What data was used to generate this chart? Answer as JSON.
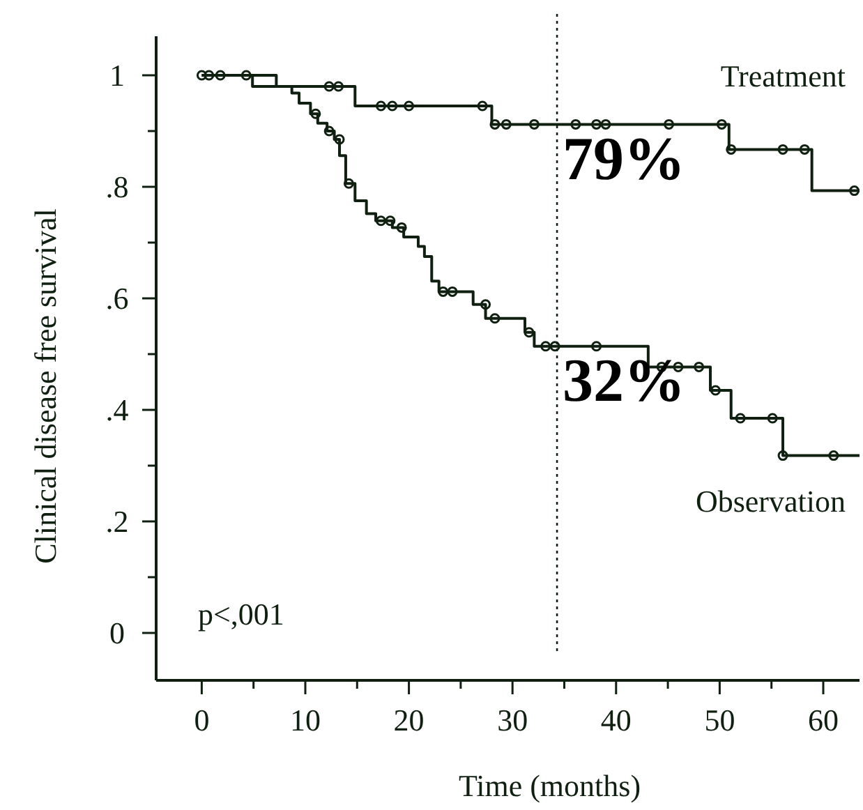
{
  "chart_data": {
    "type": "step",
    "xlabel": "Time (months)",
    "ylabel": "Clinical disease free survival",
    "xlim": [
      -4.4,
      63.5
    ],
    "ylim": [
      -0.085,
      1.07
    ],
    "xticks": [
      0,
      {
        "value": 5,
        "label": null
      },
      10,
      {
        "value": 15,
        "label": null
      },
      20,
      {
        "value": 25,
        "label": null
      },
      30,
      {
        "value": 35,
        "label": null
      },
      40,
      {
        "value": 45,
        "label": null
      },
      50,
      {
        "value": 55,
        "label": null
      },
      60
    ],
    "yticks": [
      0,
      {
        "value": 0.1,
        "label": null
      },
      {
        "value": 0.2,
        "label": ".2"
      },
      {
        "value": 0.3,
        "label": null
      },
      {
        "value": 0.4,
        "label": ".4"
      },
      {
        "value": 0.5,
        "label": null
      },
      {
        "value": 0.6,
        "label": ".6"
      },
      {
        "value": 0.7,
        "label": null
      },
      {
        "value": 0.8,
        "label": ".8"
      },
      {
        "value": 0.9,
        "label": null
      },
      1
    ],
    "grid": false,
    "marker": "none",
    "line_style": "solid",
    "series": [
      {
        "name": "Treatment",
        "color": "#102010",
        "x": [
          0,
          7.2,
          14.8,
          28,
          50.9,
          58.9,
          63.5
        ],
        "values": [
          1,
          0.98,
          0.945,
          0.912,
          0.867,
          0.793,
          0.793
        ]
      },
      {
        "name": "Observation",
        "color": "#102010",
        "x": [
          0,
          4.9,
          8.7,
          9.4,
          10.5,
          11.2,
          12.1,
          12.8,
          13.3,
          13.9,
          14.8,
          15.9,
          16.8,
          18.4,
          19.5,
          20.9,
          21.5,
          22.2,
          22.9,
          26.2,
          27.4,
          31.2,
          32.1,
          43.1,
          49.1,
          51.1,
          56.1,
          63.5
        ],
        "values": [
          1,
          0.98,
          0.968,
          0.95,
          0.931,
          0.914,
          0.9,
          0.885,
          0.856,
          0.806,
          0.775,
          0.752,
          0.739,
          0.727,
          0.71,
          0.693,
          0.675,
          0.631,
          0.612,
          0.589,
          0.564,
          0.539,
          0.514,
          0.477,
          0.435,
          0.385,
          0.318,
          0.318
        ]
      },
      {
        "type": "scatter",
        "color": "#102010",
        "marker": "circle",
        "x": [
          0,
          0.7,
          1.8,
          4.3,
          12.3,
          13.2,
          17.3,
          18.4,
          20,
          27.1,
          28.3,
          29.4,
          32.1,
          36.1,
          38.1,
          39,
          45.1,
          50.2,
          51.1,
          56.1,
          58.2,
          63
        ],
        "values": [
          1,
          1,
          1,
          1,
          0.98,
          0.98,
          0.945,
          0.945,
          0.945,
          0.945,
          0.912,
          0.912,
          0.912,
          0.912,
          0.912,
          0.912,
          0.912,
          0.912,
          0.867,
          0.867,
          0.867,
          0.793
        ]
      },
      {
        "type": "scatter",
        "color": "#102010",
        "marker": "circle",
        "x": [
          11,
          12.3,
          13.3,
          14.2,
          17.3,
          18.2,
          19.3,
          23.3,
          24.2,
          27.4,
          28.3,
          31.6,
          33.2,
          34.1,
          38.1,
          44.4,
          46,
          48,
          49.6,
          52,
          55.1,
          56.1,
          61
        ],
        "values": [
          0.931,
          0.9,
          0.885,
          0.806,
          0.739,
          0.739,
          0.727,
          0.612,
          0.612,
          0.589,
          0.564,
          0.539,
          0.514,
          0.514,
          0.514,
          0.477,
          0.477,
          0.477,
          0.435,
          0.385,
          0.385,
          0.318,
          0.318
        ]
      }
    ],
    "ref_lines": [
      {
        "axis": "x",
        "value": 34.3,
        "color": "#102010",
        "line_style": "dotted"
      }
    ],
    "annotations": [
      "79%",
      "32%",
      "p<,001"
    ]
  }
}
